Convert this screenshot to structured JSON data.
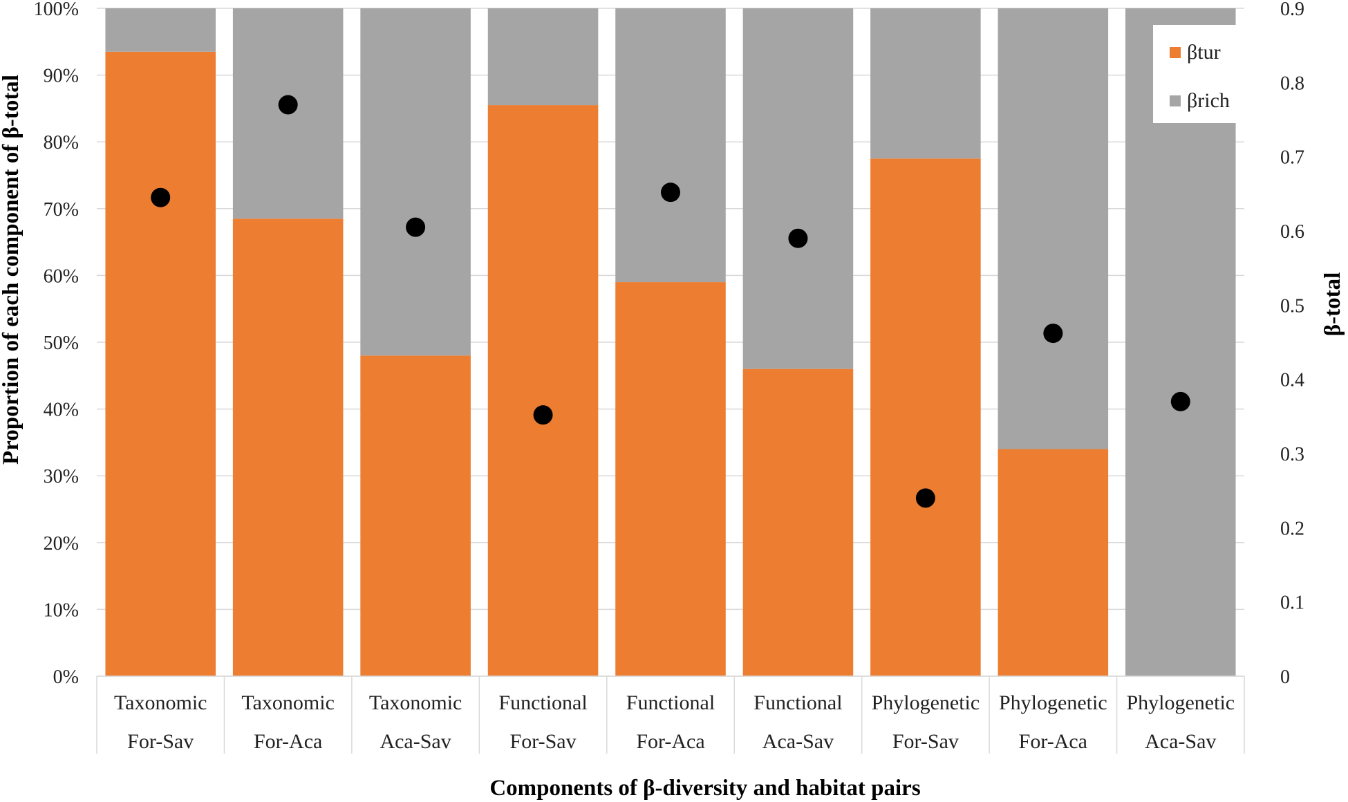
{
  "chart_data": {
    "type": "bar",
    "subtype": "stacked-100-with-scatter-secondary-axis",
    "categories": [
      [
        "Taxonomic",
        "For-Sav"
      ],
      [
        "Taxonomic",
        "For-Aca"
      ],
      [
        "Taxonomic",
        "Aca-Sav"
      ],
      [
        "Functional",
        "For-Sav"
      ],
      [
        "Functional",
        "For-Aca"
      ],
      [
        "Functional",
        "Aca-Sav"
      ],
      [
        "Phylogenetic",
        "For-Sav"
      ],
      [
        "Phylogenetic",
        "For-Aca"
      ],
      [
        "Phylogenetic",
        "Aca-Sav"
      ]
    ],
    "series": [
      {
        "name": "βtur",
        "axis": "left",
        "color": "#ED7D31",
        "values": [
          93.5,
          68.5,
          48,
          85.5,
          59,
          46,
          77.5,
          34,
          0
        ]
      },
      {
        "name": "βrich",
        "axis": "left",
        "color": "#A5A5A5",
        "values": [
          6.5,
          31.5,
          52,
          14.5,
          41,
          54,
          22.5,
          66,
          100
        ]
      },
      {
        "name": "β-total",
        "axis": "right",
        "type": "scatter",
        "color": "#000000",
        "values": [
          0.645,
          0.77,
          0.605,
          0.352,
          0.652,
          0.59,
          0.24,
          0.462,
          0.37
        ]
      }
    ],
    "xlabel": "Components of β-diversity and habitat pairs",
    "ylabel": "Proportion of each component of β-total",
    "y2label": "β-total",
    "ylim": [
      0,
      100
    ],
    "y2lim": [
      0,
      0.9
    ],
    "yticks": [
      "0%",
      "10%",
      "20%",
      "30%",
      "40%",
      "50%",
      "60%",
      "70%",
      "80%",
      "90%",
      "100%"
    ],
    "y2ticks": [
      "0",
      "0.1",
      "0.2",
      "0.3",
      "0.4",
      "0.5",
      "0.6",
      "0.7",
      "0.8",
      "0.9"
    ],
    "gridlines": true,
    "legend": "top-right"
  }
}
